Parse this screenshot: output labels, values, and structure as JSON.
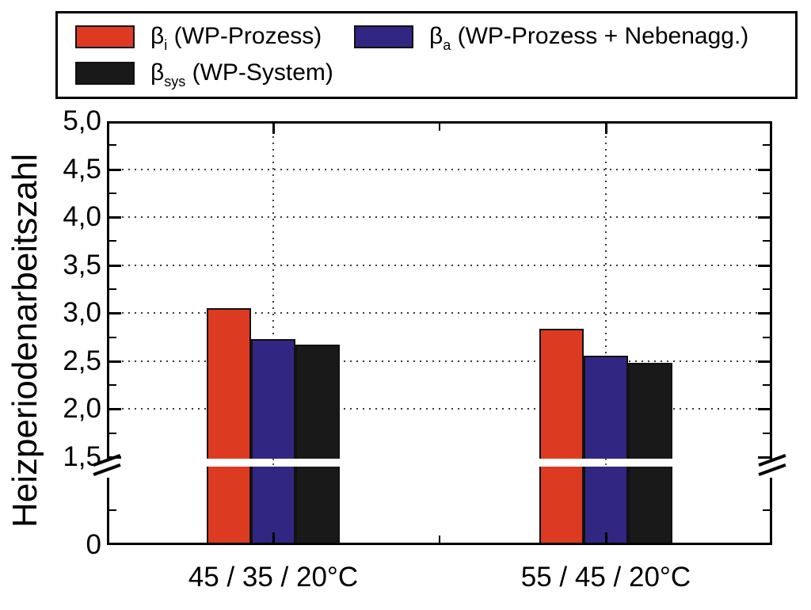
{
  "chart_data": {
    "type": "bar",
    "title": "",
    "ylabel": "Heizperiodenarbeitszahl",
    "categories": [
      "45 / 35 / 20°C",
      "55 / 45 / 20°C"
    ],
    "series": [
      {
        "symbol": "β",
        "subscript": "i",
        "label": "(WP-Prozess)",
        "color": "#dd3b21",
        "values": [
          3.05,
          2.84
        ]
      },
      {
        "symbol": "β",
        "subscript": "a",
        "label": "(WP-Prozess + Nebenagg.)",
        "color": "#312783",
        "values": [
          2.73,
          2.56
        ]
      },
      {
        "symbol": "β",
        "subscript": "sys",
        "label": "(WP-System)",
        "color": "#191919",
        "values": [
          2.67,
          2.48
        ]
      }
    ],
    "y_axis": {
      "ticks": [
        {
          "label": "5,0",
          "value": 5.0
        },
        {
          "label": "4,5",
          "value": 4.5
        },
        {
          "label": "4,0",
          "value": 4.0
        },
        {
          "label": "3,5",
          "value": 3.5
        },
        {
          "label": "3,0",
          "value": 3.0
        },
        {
          "label": "2,5",
          "value": 2.5
        },
        {
          "label": "2,0",
          "value": 2.0
        },
        {
          "label": "1,5",
          "value": 1.5
        },
        {
          "label": "0",
          "value": 0
        }
      ],
      "range_upper": [
        1.5,
        5.0
      ],
      "axis_break": {
        "at": 1.5,
        "style": "double-slash"
      }
    },
    "grid": {
      "horizontal_at": [
        2.0,
        2.5,
        3.0,
        3.5,
        4.0,
        4.5
      ],
      "style": "dotted"
    },
    "legend_position": "top",
    "colors": {
      "frame": "#000000",
      "grid": "#3a3a3a",
      "background": "#ffffff"
    }
  }
}
